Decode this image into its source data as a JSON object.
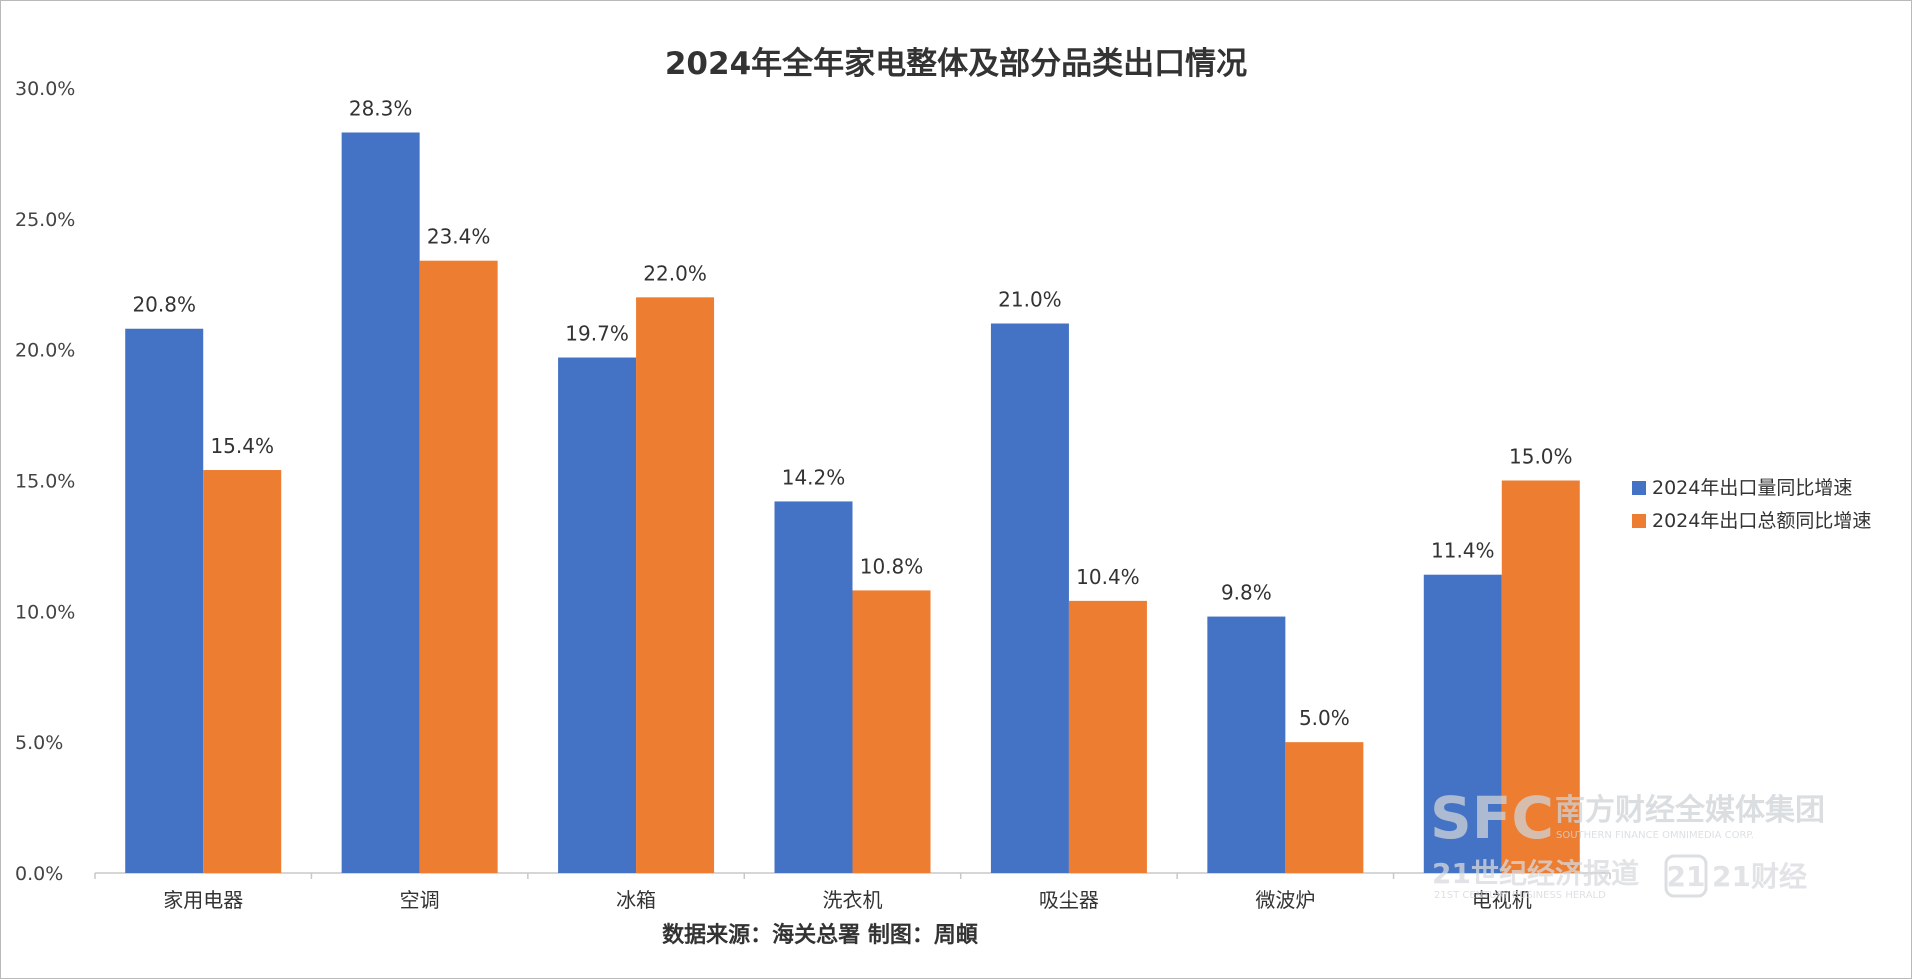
{
  "chart_data": {
    "type": "bar",
    "title": "2024年全年家电整体及部分品类出口情况",
    "categories": [
      "家用电器",
      "空调",
      "冰箱",
      "洗衣机",
      "吸尘器",
      "微波炉",
      "电视机"
    ],
    "series": [
      {
        "name": "2024年出口量同比增速",
        "color": "#4472C4",
        "values": [
          20.8,
          28.3,
          19.7,
          14.2,
          21.0,
          9.8,
          11.4
        ],
        "labels": [
          "20.8%",
          "28.3%",
          "19.7%",
          "14.2%",
          "21.0%",
          "9.8%",
          "11.4%"
        ]
      },
      {
        "name": "2024年出口总额同比增速",
        "color": "#ED7D31",
        "values": [
          15.4,
          23.4,
          22.0,
          10.8,
          10.4,
          5.0,
          15.0
        ],
        "labels": [
          "15.4%",
          "23.4%",
          "22.0%",
          "10.8%",
          "10.4%",
          "5.0%",
          "15.0%"
        ]
      }
    ],
    "ylim": [
      0,
      30
    ],
    "yticks": [
      0,
      5,
      10,
      15,
      20,
      25,
      30
    ],
    "ytick_labels": [
      "0.0%",
      "5.0%",
      "10.0%",
      "15.0%",
      "20.0%",
      "25.0%",
      "30.0%"
    ],
    "xlabel": "",
    "ylabel": "",
    "grid": false,
    "legend_position": "right"
  },
  "source_note": "数据来源：海关总署    制图：周頔",
  "watermark": {
    "logo": "SFC",
    "brand": "南方财经全媒体集团",
    "brand_en": "SOUTHERN FINANCE OMNIMEDIA CORP.",
    "paper": "21世纪经济报道",
    "paper_en": "21ST CENTURY BUSINESS HERALD",
    "app": "21财经",
    "app_badge": "21"
  }
}
